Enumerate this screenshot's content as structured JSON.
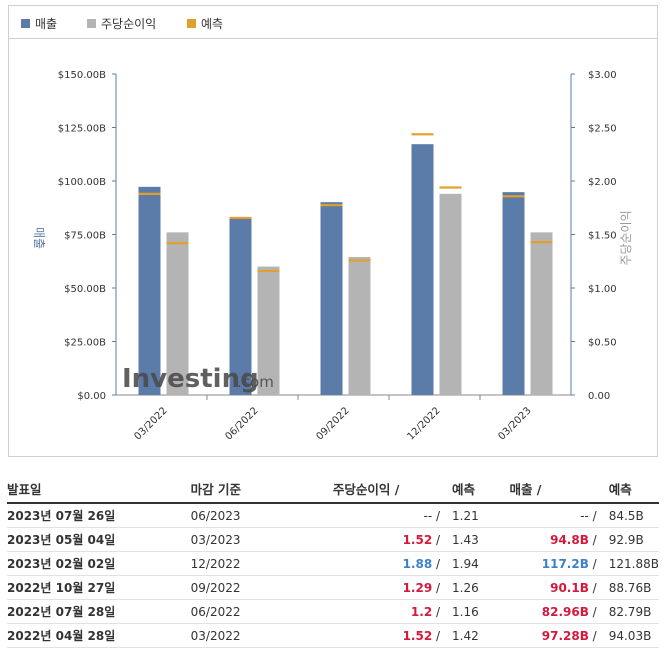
{
  "legend": [
    {
      "label": "매출",
      "color": "#5b7ba8"
    },
    {
      "label": "주당순이익",
      "color": "#b4b4b4"
    },
    {
      "label": "예측",
      "color": "#e0a02d"
    }
  ],
  "axis_labels": {
    "left": "매출",
    "right": "주당순이익"
  },
  "watermark": {
    "text_main": "Investing",
    "text_suffix": ".com"
  },
  "chart_data": {
    "type": "bar",
    "categories": [
      "03/2022",
      "06/2022",
      "09/2022",
      "12/2022",
      "03/2023"
    ],
    "series": [
      {
        "name": "매출",
        "axis": "left",
        "color": "#5b7ba8",
        "values": [
          97.28,
          82.96,
          90.1,
          117.2,
          94.8
        ]
      },
      {
        "name": "주당순이익",
        "axis": "right",
        "color": "#b4b4b4",
        "values": [
          1.52,
          1.2,
          1.29,
          1.88,
          1.52
        ]
      }
    ],
    "forecast": {
      "name": "예측",
      "color": "#e0a02d",
      "revenue": [
        94.03,
        82.79,
        88.76,
        121.88,
        92.9
      ],
      "eps": [
        1.42,
        1.16,
        1.26,
        1.94,
        1.43
      ]
    },
    "ylim_left": [
      0,
      150
    ],
    "ylim_right": [
      0,
      3
    ],
    "left_ticks": [
      "$0.00",
      "$25.00B",
      "$50.00B",
      "$75.00B",
      "$100.00B",
      "$125.00B",
      "$150.00B"
    ],
    "right_ticks": [
      "0.00",
      "$0.50",
      "$1.00",
      "$1.50",
      "$2.00",
      "$2.50",
      "$3.00"
    ],
    "ylabel_left": "매출",
    "ylabel_right": "주당순이익"
  },
  "table": {
    "headers": {
      "date": "발표일",
      "period": "마감 기준",
      "eps": "주당순이익 /",
      "eps_forecast": "예측",
      "revenue": "매출 /",
      "revenue_forecast": "예측"
    },
    "rows": [
      {
        "date": "2023년 07월 26일",
        "period": "06/2023",
        "eps": "--",
        "eps_color": "plain",
        "eps_forecast": "1.21",
        "revenue": "--",
        "revenue_color": "plain",
        "revenue_forecast": "84.5B"
      },
      {
        "date": "2023년 05월 04일",
        "period": "03/2023",
        "eps": "1.52",
        "eps_color": "red",
        "eps_forecast": "1.43",
        "revenue": "94.8B",
        "revenue_color": "red",
        "revenue_forecast": "92.9B"
      },
      {
        "date": "2023년 02월 02일",
        "period": "12/2022",
        "eps": "1.88",
        "eps_color": "blue",
        "eps_forecast": "1.94",
        "revenue": "117.2B",
        "revenue_color": "blue",
        "revenue_forecast": "121.88B"
      },
      {
        "date": "2022년 10월 27일",
        "period": "09/2022",
        "eps": "1.29",
        "eps_color": "red",
        "eps_forecast": "1.26",
        "revenue": "90.1B",
        "revenue_color": "red",
        "revenue_forecast": "88.76B"
      },
      {
        "date": "2022년 07월 28일",
        "period": "06/2022",
        "eps": "1.2",
        "eps_color": "red",
        "eps_forecast": "1.16",
        "revenue": "82.96B",
        "revenue_color": "red",
        "revenue_forecast": "82.79B"
      },
      {
        "date": "2022년 04월 28일",
        "period": "03/2022",
        "eps": "1.52",
        "eps_color": "red",
        "eps_forecast": "1.42",
        "revenue": "97.28B",
        "revenue_color": "red",
        "revenue_forecast": "94.03B"
      }
    ]
  }
}
